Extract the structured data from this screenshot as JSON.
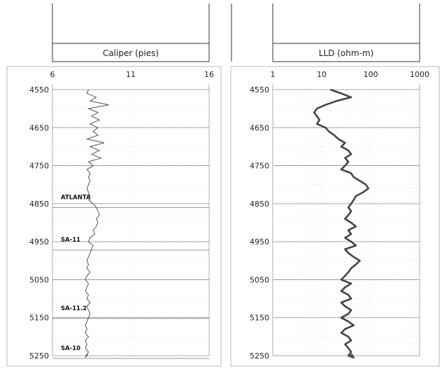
{
  "chart_data": [
    {
      "type": "line",
      "title": "",
      "xlabel": "Caliper (pies)",
      "ylabel": "",
      "xlim": [
        6,
        16
      ],
      "x_ticks": [
        "6",
        "11",
        "16"
      ],
      "ylim": [
        4550,
        5250
      ],
      "y_ticks": [
        "4550",
        "4650",
        "4750",
        "4850",
        "4950",
        "5050",
        "5150",
        "5250"
      ],
      "grid": true,
      "series": [
        {
          "x": [
            8.3,
            8.2,
            8.8,
            8.4,
            9.6,
            8.3,
            8.9,
            8.5,
            9.0,
            8.4,
            8.9,
            8.6,
            8.9,
            8.2,
            9.3,
            8.4,
            9.0,
            8.5,
            9.1,
            8.3,
            8.6,
            8.2,
            8.4,
            8.3,
            8.4,
            8.3,
            8.2,
            8.3,
            8.4,
            8.3,
            8.6,
            8.8,
            8.9,
            9.0,
            8.8,
            8.9,
            8.8,
            8.6,
            8.7,
            8.4,
            8.3,
            8.6,
            8.5,
            8.4,
            8.3,
            8.2,
            8.3,
            8.2,
            8.4,
            8.2,
            8.1,
            8.3,
            8.2,
            8.1,
            8.3,
            8.2,
            8.4,
            8.2,
            8.3,
            8.4,
            8.3,
            8.2,
            8.1,
            8.2,
            8.1,
            8.3,
            8.1,
            8.2,
            8.1,
            8.3,
            8.2,
            8.1,
            8.2
          ],
          "y": [
            4550,
            4560,
            4570,
            4580,
            4590,
            4600,
            4610,
            4620,
            4630,
            4640,
            4650,
            4660,
            4670,
            4680,
            4690,
            4700,
            4710,
            4720,
            4730,
            4740,
            4750,
            4760,
            4770,
            4780,
            4790,
            4800,
            4810,
            4820,
            4830,
            4840,
            4850,
            4860,
            4870,
            4880,
            4890,
            4900,
            4910,
            4920,
            4930,
            4940,
            4950,
            4960,
            4970,
            4980,
            4990,
            5000,
            5010,
            5020,
            5030,
            5040,
            5050,
            5060,
            5070,
            5080,
            5090,
            5100,
            5110,
            5120,
            5130,
            5140,
            5150,
            5160,
            5170,
            5180,
            5190,
            5200,
            5210,
            5220,
            5230,
            5240,
            5250,
            5255,
            5245
          ]
        }
      ],
      "annotations": [
        {
          "label": "ATLANTA",
          "depth": 4838
        },
        {
          "label": "SA-11",
          "depth": 4950
        },
        {
          "label": "SA-11.2",
          "depth": 5130
        },
        {
          "label": "SA-10",
          "depth": 5235
        }
      ]
    },
    {
      "type": "line",
      "title": "",
      "xlabel": "LLD (ohm-m)",
      "ylabel": "",
      "xscale": "log",
      "xlim": [
        1,
        1000
      ],
      "x_ticks": [
        "1",
        "10",
        "100",
        "1000"
      ],
      "ylim": [
        4550,
        5250
      ],
      "y_ticks": [
        "4550",
        "4650",
        "4750",
        "4850",
        "4950",
        "5050",
        "5150",
        "5250"
      ],
      "grid": true,
      "series": [
        {
          "x": [
            15,
            25,
            40,
            20,
            12,
            8,
            7,
            8,
            9,
            8,
            12,
            14,
            18,
            22,
            30,
            25,
            35,
            40,
            30,
            35,
            30,
            25,
            40,
            45,
            60,
            80,
            90,
            70,
            50,
            45,
            40,
            35,
            40,
            35,
            30,
            40,
            50,
            35,
            40,
            30,
            40,
            50,
            30,
            35,
            45,
            60,
            50,
            40,
            35,
            30,
            25,
            40,
            30,
            25,
            35,
            40,
            25,
            30,
            40,
            35,
            25,
            35,
            45,
            30,
            25,
            35,
            40,
            30,
            35,
            40,
            35,
            45,
            40
          ],
          "y": [
            4550,
            4560,
            4570,
            4580,
            4590,
            4600,
            4610,
            4620,
            4630,
            4640,
            4650,
            4660,
            4670,
            4680,
            4690,
            4700,
            4710,
            4720,
            4730,
            4740,
            4750,
            4760,
            4770,
            4780,
            4790,
            4800,
            4810,
            4820,
            4830,
            4840,
            4850,
            4860,
            4870,
            4880,
            4890,
            4900,
            4910,
            4920,
            4930,
            4940,
            4950,
            4960,
            4970,
            4980,
            4990,
            5000,
            5010,
            5020,
            5030,
            5040,
            5050,
            5060,
            5070,
            5080,
            5090,
            5100,
            5110,
            5120,
            5130,
            5140,
            5150,
            5160,
            5170,
            5180,
            5190,
            5200,
            5210,
            5220,
            5230,
            5240,
            5250,
            5255,
            5245
          ]
        }
      ]
    }
  ]
}
